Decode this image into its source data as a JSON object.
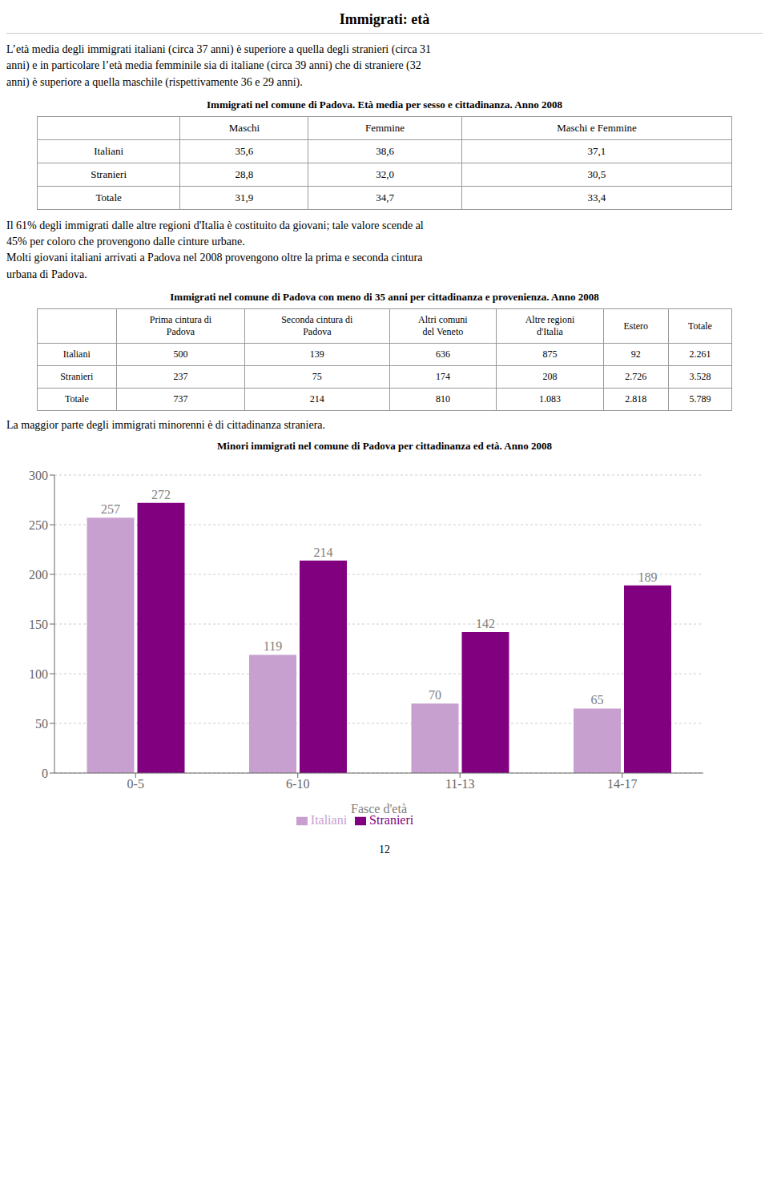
{
  "header_title": "Immigrati: età",
  "body_text1_lines": [
    "L’età media degli immigrati italiani (circa 37 anni) è superiore a quella degli stranieri (circa 31",
    "anni) e in particolare l’età media femminile sia di italiane (circa 39 anni) che di straniere (32",
    "anni) è superiore a quella maschile (rispettivamente 36 e 29 anni)."
  ],
  "table1": {
    "title": "Immigrati nel comune di Padova. Età media per sesso e cittadinanza. Anno 2008",
    "col_headers": [
      "Maschi",
      "Femmine",
      "Maschi e Femmine"
    ],
    "row_headers": [
      "Italiani",
      "Stranieri",
      "Totale"
    ],
    "rows": [
      [
        "35,6",
        "38,6",
        "37,1"
      ],
      [
        "28,8",
        "32,0",
        "30,5"
      ],
      [
        "31,9",
        "34,7",
        "33,4"
      ]
    ]
  },
  "body_text2_lines": [
    "Il 61% degli immigrati dalle altre regioni d'Italia è costituito da giovani; tale valore scende al",
    "45% per coloro che provengono dalle cinture urbane.",
    "Molti giovani italiani arrivati a Padova nel 2008 provengono oltre la prima e seconda cintura",
    "urbana di Padova."
  ],
  "table2": {
    "title": "Immigrati nel comune di Padova con meno di 35 anni per cittadinanza e provenienza. Anno 2008",
    "col_headers": [
      "Prima cintura di\nPadova",
      "Seconda cintura di\nPadova",
      "Altri comuni\ndel Veneto",
      "Altre regioni\nd'Italia",
      "Estero",
      "Totale"
    ],
    "row_headers": [
      "Italiani",
      "Stranieri",
      "Totale"
    ],
    "rows": [
      [
        "500",
        "139",
        "636",
        "875",
        "92",
        "2.261"
      ],
      [
        "237",
        "75",
        "174",
        "208",
        "2.726",
        "3.528"
      ],
      [
        "737",
        "214",
        "810",
        "1.083",
        "2.818",
        "5.789"
      ]
    ]
  },
  "body_text3": "La maggior parte degli immigrati minorenni è di cittadinanza straniera.",
  "chart_data": {
    "type": "bar",
    "title": "Minori immigrati nel comune di Padova per cittadinanza ed età. Anno 2008",
    "xlabel": "Fasce d'età",
    "categories": [
      "0-5",
      "6-10",
      "11-13",
      "14-17"
    ],
    "series": [
      {
        "name": "Italiani",
        "color": "#C8A0D0",
        "values": [
          257,
          119,
          70,
          65
        ]
      },
      {
        "name": "Stranieri",
        "color": "#800080",
        "values": [
          272,
          214,
          142,
          189
        ]
      }
    ],
    "ylim": [
      0,
      300
    ],
    "yticks": [
      0,
      50,
      100,
      150,
      200,
      250,
      300
    ],
    "grid": true,
    "data_labels": true,
    "legend": "bottom"
  },
  "page_number": "12"
}
